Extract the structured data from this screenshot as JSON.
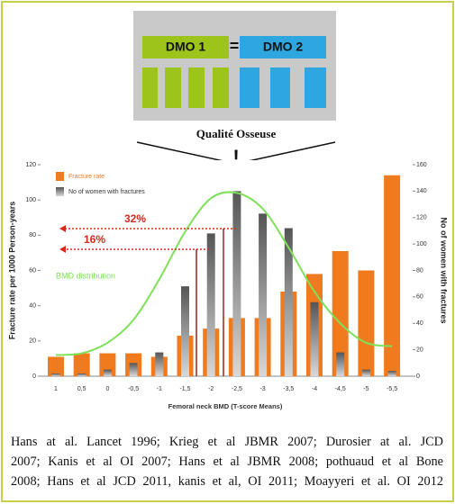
{
  "diagram": {
    "left_label": "DMO 1",
    "equals": "=",
    "right_label": "DMO 2",
    "caption": "Qualité Osseuse",
    "alert": "!"
  },
  "chart_data": {
    "type": "bar",
    "categories": [
      "1",
      "0,5",
      "0",
      "-0,5",
      "-1",
      "-1,5",
      "-2",
      "-2,5",
      "-3",
      "-3,5",
      "-4",
      "-4,5",
      "-5",
      "-5,5"
    ],
    "series": [
      {
        "name": "Fracture rate",
        "color": "#f07a1e",
        "type": "bar",
        "values": [
          11,
          13,
          13,
          13,
          11,
          23,
          27,
          33,
          33,
          48,
          58,
          71,
          60,
          114
        ]
      },
      {
        "name": "No of women with fractures",
        "color": "#8a8a8a",
        "type": "bar",
        "axis": "y2",
        "values": [
          2,
          2,
          5,
          10,
          18,
          68,
          108,
          140,
          123,
          112,
          56,
          18,
          5,
          4
        ]
      },
      {
        "name": "BMD distribution",
        "color": "#7fe05a",
        "type": "line",
        "values": [
          12,
          13,
          19,
          32,
          55,
          82,
          101,
          104,
          95,
          73,
          48,
          30,
          19,
          17
        ]
      }
    ],
    "ylim": [
      0,
      120
    ],
    "yticks": [
      0,
      20,
      40,
      60,
      80,
      100,
      120
    ],
    "y2lim": [
      0,
      160
    ],
    "y2ticks": [
      0,
      20,
      40,
      60,
      80,
      100,
      120,
      140,
      160
    ],
    "ylabel": "Fracture rate per 1000 Person-years",
    "y2label": "No of women with fractures",
    "xlabel": "Femoral neck BMD (T-score Means)",
    "annotations": [
      "32%",
      "16%"
    ]
  },
  "citation": [
    "Hans at al. Lancet 1996; Krieg et al JBMR 2007; Durosier at al. JCD",
    "2007; Kanis et al OI 2007; Hans et al JBMR 2008; pothuaud et al Bone",
    "2008; Hans et al JCD 2011, kanis et al, OI 2011; Moayyeri et al. OI 2012"
  ]
}
